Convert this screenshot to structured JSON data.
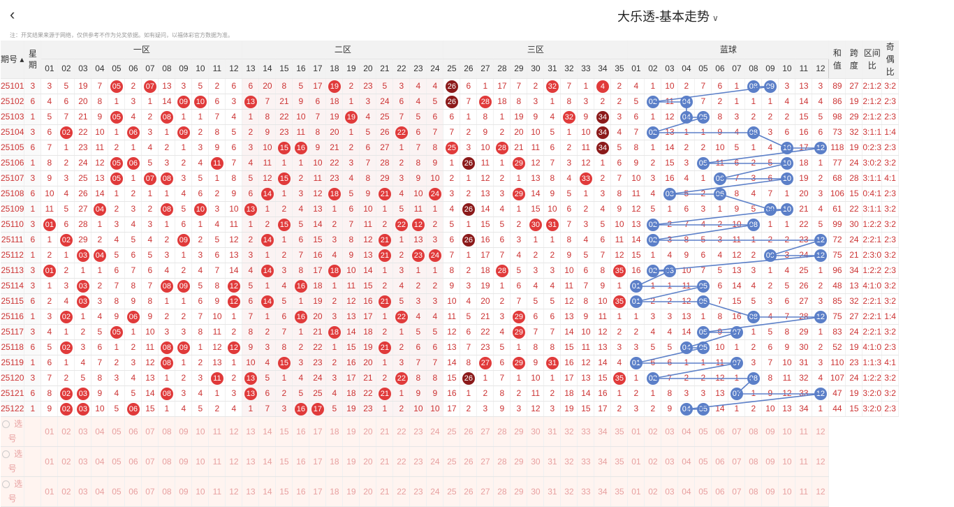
{
  "app": {
    "title": "大乐透-基本走势",
    "back_icon": "chevron-left-icon",
    "dropdown_icon": "chevron-down-icon"
  },
  "note": "注：开奖结果来源于网络，仅供参考不作为兑奖依据。如有疑问，以福体彩官方数据为准。",
  "headers": {
    "issue": "期号",
    "week": "星期",
    "zones": [
      "一区",
      "二区",
      "三区",
      "蓝球"
    ],
    "sum": "和值",
    "span": "跨度",
    "zone_ratio": "区间比",
    "odd_even": "奇偶比"
  },
  "numbers_red": [
    "01",
    "02",
    "03",
    "04",
    "05",
    "06",
    "07",
    "08",
    "09",
    "10",
    "11",
    "12",
    "13",
    "14",
    "15",
    "16",
    "17",
    "18",
    "19",
    "20",
    "21",
    "22",
    "23",
    "24",
    "25",
    "26",
    "27",
    "28",
    "29",
    "30",
    "31",
    "32",
    "33",
    "34",
    "35"
  ],
  "numbers_blue": [
    "01",
    "02",
    "03",
    "04",
    "05",
    "06",
    "07",
    "08",
    "09",
    "10",
    "11",
    "12"
  ],
  "select_label": "选号",
  "rows": [
    {
      "issue": "25101",
      "week": "3",
      "red": [
        3,
        5,
        19,
        7,
        "05",
        2,
        "07",
        13,
        3,
        5,
        2,
        6,
        6,
        20,
        8,
        5,
        17,
        "19",
        2,
        23,
        5,
        3,
        4,
        4,
        "26",
        6,
        1,
        17,
        7,
        2,
        "32",
        7,
        1,
        "4",
        2
      ],
      "blue": [
        4,
        1,
        10,
        2,
        7,
        6,
        1,
        "08",
        "09",
        3,
        13,
        3
      ],
      "sum": "89",
      "span": "27",
      "zr": "2:1:2",
      "oe": "3:2"
    },
    {
      "issue": "25102",
      "week": "6",
      "red": [
        4,
        6,
        20,
        8,
        1,
        3,
        1,
        14,
        "09",
        "10",
        6,
        3,
        "13",
        7,
        21,
        9,
        6,
        18,
        1,
        3,
        24,
        6,
        4,
        5,
        "26",
        7,
        "28",
        18,
        8,
        3,
        1,
        8,
        3,
        2,
        2
      ],
      "blue": [
        5,
        "02",
        11,
        "04",
        7,
        2,
        1,
        1,
        1,
        4,
        14,
        4
      ],
      "sum": "86",
      "span": "19",
      "zr": "2:1:2",
      "oe": "2:3"
    },
    {
      "issue": "25103",
      "week": "1",
      "red": [
        5,
        7,
        21,
        9,
        "05",
        4,
        2,
        "08",
        1,
        1,
        7,
        4,
        1,
        8,
        22,
        10,
        7,
        19,
        "19",
        4,
        25,
        7,
        5,
        6,
        6,
        1,
        8,
        1,
        19,
        9,
        4,
        "32",
        9,
        "34",
        3
      ],
      "blue": [
        6,
        1,
        12,
        "04",
        "05",
        8,
        3,
        2,
        2,
        2,
        15,
        5
      ],
      "sum": "98",
      "span": "29",
      "zr": "2:1:2",
      "oe": "2:3"
    },
    {
      "issue": "25104",
      "week": "3",
      "red": [
        6,
        "02",
        22,
        10,
        1,
        "06",
        3,
        1,
        "09",
        2,
        8,
        5,
        2,
        9,
        23,
        11,
        8,
        20,
        1,
        5,
        26,
        "22",
        6,
        7,
        7,
        2,
        9,
        2,
        20,
        10,
        5,
        1,
        10,
        "34",
        4
      ],
      "blue": [
        7,
        "02",
        13,
        1,
        1,
        9,
        4,
        "08",
        3,
        6,
        16,
        6
      ],
      "sum": "73",
      "span": "32",
      "zr": "3:1:1",
      "oe": "1:4"
    },
    {
      "issue": "25105",
      "week": "6",
      "red": [
        7,
        1,
        23,
        11,
        2,
        1,
        4,
        2,
        1,
        3,
        9,
        6,
        3,
        10,
        "15",
        "16",
        9,
        21,
        2,
        6,
        27,
        1,
        7,
        8,
        "25",
        3,
        10,
        "28",
        21,
        11,
        6,
        2,
        11,
        "34",
        5
      ],
      "blue": [
        8,
        1,
        14,
        2,
        2,
        10,
        5,
        1,
        4,
        "10",
        17,
        "12"
      ],
      "sum": "118",
      "span": "19",
      "zr": "0:2:3",
      "oe": "2:3"
    },
    {
      "issue": "25106",
      "week": "1",
      "red": [
        8,
        2,
        24,
        12,
        "05",
        "06",
        5,
        3,
        2,
        4,
        "11",
        7,
        4,
        11,
        1,
        1,
        10,
        22,
        3,
        7,
        28,
        2,
        8,
        9,
        1,
        "26",
        11,
        1,
        "29",
        12,
        7,
        3,
        12,
        1,
        6
      ],
      "blue": [
        9,
        2,
        15,
        3,
        "05",
        11,
        6,
        2,
        5,
        "10",
        18,
        1
      ],
      "sum": "77",
      "span": "24",
      "zr": "3:0:2",
      "oe": "3:2"
    },
    {
      "issue": "25107",
      "week": "3",
      "red": [
        9,
        3,
        25,
        13,
        "05",
        1,
        "07",
        "08",
        3,
        5,
        1,
        8,
        5,
        12,
        "15",
        2,
        11,
        23,
        4,
        8,
        29,
        3,
        9,
        10,
        2,
        1,
        12,
        2,
        1,
        13,
        8,
        4,
        "33",
        2,
        7
      ],
      "blue": [
        10,
        3,
        16,
        4,
        1,
        "06",
        7,
        3,
        6,
        "10",
        19,
        2
      ],
      "sum": "68",
      "span": "28",
      "zr": "3:1:1",
      "oe": "4:1"
    },
    {
      "issue": "25108",
      "week": "6",
      "red": [
        10,
        4,
        26,
        14,
        1,
        2,
        1,
        1,
        4,
        6,
        2,
        9,
        6,
        "14",
        1,
        3,
        12,
        "18",
        5,
        9,
        "21",
        4,
        10,
        "24",
        3,
        2,
        13,
        3,
        "29",
        14,
        9,
        5,
        1,
        3,
        8
      ],
      "blue": [
        11,
        4,
        "03",
        5,
        2,
        "06",
        8,
        4,
        7,
        1,
        20,
        3
      ],
      "sum": "106",
      "span": "15",
      "zr": "0:4:1",
      "oe": "2:3"
    },
    {
      "issue": "25109",
      "week": "1",
      "red": [
        11,
        5,
        27,
        "04",
        2,
        3,
        2,
        "08",
        5,
        "10",
        3,
        10,
        "13",
        1,
        2,
        4,
        13,
        1,
        6,
        10,
        1,
        5,
        11,
        1,
        4,
        "26",
        14,
        4,
        1,
        15,
        10,
        6,
        2,
        4,
        9
      ],
      "blue": [
        12,
        5,
        1,
        6,
        3,
        1,
        9,
        5,
        "09",
        "10",
        21,
        4
      ],
      "sum": "61",
      "span": "22",
      "zr": "3:1:1",
      "oe": "3:2"
    },
    {
      "issue": "25110",
      "week": "3",
      "red": [
        "01",
        6,
        28,
        1,
        3,
        4,
        3,
        1,
        6,
        1,
        4,
        11,
        1,
        2,
        "15",
        5,
        14,
        2,
        7,
        11,
        2,
        "22",
        "12",
        2,
        5,
        1,
        15,
        5,
        2,
        "30",
        "31",
        7,
        3,
        5,
        10
      ],
      "blue": [
        13,
        "02",
        2,
        7,
        4,
        2,
        10,
        "08",
        1,
        1,
        22,
        5
      ],
      "sum": "99",
      "span": "30",
      "zr": "1:2:2",
      "oe": "3:2"
    },
    {
      "issue": "25111",
      "week": "6",
      "red": [
        1,
        "02",
        29,
        2,
        4,
        5,
        4,
        2,
        "09",
        2,
        5,
        12,
        2,
        "14",
        1,
        6,
        15,
        3,
        8,
        12,
        "21",
        1,
        13,
        3,
        6,
        "26",
        16,
        6,
        3,
        1,
        1,
        8,
        4,
        6,
        11
      ],
      "blue": [
        14,
        "02",
        3,
        8,
        5,
        3,
        11,
        1,
        2,
        2,
        23,
        "12"
      ],
      "sum": "72",
      "span": "24",
      "zr": "2:2:1",
      "oe": "2:3"
    },
    {
      "issue": "25112",
      "week": "1",
      "red": [
        2,
        1,
        "03",
        "04",
        5,
        6,
        5,
        3,
        1,
        3,
        6,
        13,
        3,
        1,
        2,
        7,
        16,
        4,
        9,
        13,
        "21",
        2,
        "23",
        "24",
        7,
        1,
        17,
        7,
        4,
        2,
        2,
        9,
        5,
        7,
        12
      ],
      "blue": [
        15,
        1,
        4,
        9,
        6,
        4,
        12,
        2,
        "09",
        3,
        24,
        "12"
      ],
      "sum": "75",
      "span": "21",
      "zr": "2:3:0",
      "oe": "3:2"
    },
    {
      "issue": "25113",
      "week": "3",
      "red": [
        "01",
        2,
        1,
        1,
        6,
        7,
        6,
        4,
        2,
        4,
        7,
        14,
        4,
        "14",
        3,
        8,
        17,
        "18",
        10,
        14,
        1,
        3,
        1,
        1,
        8,
        2,
        18,
        "28",
        5,
        3,
        3,
        10,
        6,
        8,
        "35"
      ],
      "blue": [
        16,
        "02",
        "03",
        10,
        7,
        5,
        13,
        3,
        1,
        4,
        25,
        1
      ],
      "sum": "96",
      "span": "34",
      "zr": "1:2:2",
      "oe": "2:3"
    },
    {
      "issue": "25114",
      "week": "3",
      "red": [
        1,
        3,
        "03",
        2,
        7,
        8,
        7,
        "08",
        "09",
        5,
        8,
        "12",
        5,
        1,
        4,
        "16",
        18,
        1,
        11,
        15,
        2,
        4,
        2,
        2,
        9,
        3,
        19,
        1,
        6,
        4,
        4,
        11,
        7,
        9,
        1
      ],
      "blue": [
        "01",
        1,
        1,
        11,
        "05",
        6,
        14,
        4,
        2,
        5,
        26,
        2
      ],
      "sum": "48",
      "span": "13",
      "zr": "4:1:0",
      "oe": "3:2"
    },
    {
      "issue": "25115",
      "week": "6",
      "red": [
        2,
        4,
        "03",
        3,
        8,
        9,
        8,
        1,
        1,
        6,
        9,
        "12",
        6,
        "14",
        5,
        1,
        19,
        2,
        12,
        16,
        "21",
        5,
        3,
        3,
        10,
        4,
        20,
        2,
        7,
        5,
        5,
        12,
        8,
        10,
        "35"
      ],
      "blue": [
        "01",
        2,
        2,
        12,
        "05",
        7,
        15,
        5,
        3,
        6,
        27,
        3
      ],
      "sum": "85",
      "span": "32",
      "zr": "2:2:1",
      "oe": "3:2"
    },
    {
      "issue": "25116",
      "week": "1",
      "red": [
        3,
        "02",
        1,
        4,
        9,
        "06",
        9,
        2,
        2,
        7,
        10,
        1,
        7,
        1,
        6,
        "16",
        20,
        3,
        13,
        17,
        1,
        "22",
        4,
        4,
        11,
        5,
        21,
        3,
        "29",
        6,
        6,
        13,
        9,
        11,
        1
      ],
      "blue": [
        1,
        3,
        3,
        13,
        1,
        8,
        16,
        "08",
        4,
        7,
        28,
        "12"
      ],
      "sum": "75",
      "span": "27",
      "zr": "2:2:1",
      "oe": "1:4"
    },
    {
      "issue": "25117",
      "week": "3",
      "red": [
        4,
        1,
        2,
        5,
        "05",
        1,
        10,
        3,
        3,
        8,
        11,
        2,
        8,
        2,
        7,
        1,
        21,
        "18",
        14,
        18,
        2,
        1,
        5,
        5,
        12,
        6,
        22,
        4,
        "29",
        7,
        7,
        14,
        10,
        12,
        2
      ],
      "blue": [
        2,
        4,
        4,
        14,
        "05",
        9,
        "07",
        1,
        5,
        8,
        29,
        1
      ],
      "sum": "83",
      "span": "24",
      "zr": "2:2:1",
      "oe": "3:2"
    },
    {
      "issue": "25118",
      "week": "6",
      "red": [
        5,
        "02",
        3,
        6,
        1,
        2,
        11,
        "08",
        "09",
        1,
        12,
        "12",
        9,
        3,
        8,
        2,
        22,
        1,
        15,
        19,
        "21",
        2,
        6,
        6,
        13,
        7,
        23,
        5,
        1,
        8,
        8,
        15,
        11,
        13,
        3
      ],
      "blue": [
        3,
        5,
        5,
        "04",
        "05",
        10,
        1,
        2,
        6,
        9,
        30,
        2
      ],
      "sum": "52",
      "span": "19",
      "zr": "4:1:0",
      "oe": "2:3"
    },
    {
      "issue": "25119",
      "week": "1",
      "red": [
        6,
        1,
        4,
        7,
        2,
        3,
        12,
        "08",
        1,
        2,
        13,
        1,
        10,
        4,
        "15",
        3,
        23,
        2,
        16,
        20,
        1,
        3,
        7,
        7,
        14,
        8,
        "27",
        6,
        "29",
        9,
        "31",
        16,
        12,
        14,
        4
      ],
      "blue": [
        "01",
        6,
        6,
        1,
        1,
        11,
        "07",
        3,
        7,
        10,
        31,
        3
      ],
      "sum": "110",
      "span": "23",
      "zr": "1:1:3",
      "oe": "4:1"
    },
    {
      "issue": "25120",
      "week": "3",
      "red": [
        7,
        2,
        5,
        8,
        3,
        4,
        13,
        1,
        2,
        3,
        "11",
        2,
        "13",
        5,
        1,
        4,
        24,
        3,
        17,
        21,
        2,
        "22",
        8,
        8,
        15,
        "26",
        1,
        7,
        1,
        10,
        1,
        17,
        13,
        15,
        "35"
      ],
      "blue": [
        1,
        "02",
        7,
        2,
        2,
        12,
        1,
        "08",
        8,
        11,
        32,
        4
      ],
      "sum": "107",
      "span": "24",
      "zr": "1:2:2",
      "oe": "3:2"
    },
    {
      "issue": "25121",
      "week": "6",
      "red": [
        8,
        "02",
        "03",
        9,
        4,
        5,
        14,
        "08",
        3,
        4,
        1,
        3,
        "13",
        6,
        2,
        5,
        25,
        4,
        18,
        22,
        "21",
        1,
        9,
        9,
        16,
        1,
        2,
        8,
        2,
        11,
        2,
        18,
        14,
        16,
        1
      ],
      "blue": [
        2,
        1,
        8,
        3,
        3,
        13,
        "07",
        1,
        9,
        12,
        33,
        "12"
      ],
      "sum": "47",
      "span": "19",
      "zr": "3:2:0",
      "oe": "3:2"
    },
    {
      "issue": "25122",
      "week": "1",
      "red": [
        9,
        "02",
        "03",
        10,
        5,
        "06",
        15,
        1,
        4,
        5,
        2,
        4,
        1,
        7,
        3,
        "16",
        "17",
        5,
        19,
        23,
        1,
        2,
        10,
        10,
        17,
        2,
        3,
        9,
        3,
        12,
        3,
        19,
        15,
        17,
        2
      ],
      "blue": [
        3,
        2,
        9,
        "04",
        "05",
        14,
        1,
        2,
        10,
        13,
        34,
        1
      ],
      "sum": "44",
      "span": "15",
      "zr": "3:2:0",
      "oe": "2:3"
    }
  ],
  "dark_balls": [
    "26",
    "34"
  ]
}
